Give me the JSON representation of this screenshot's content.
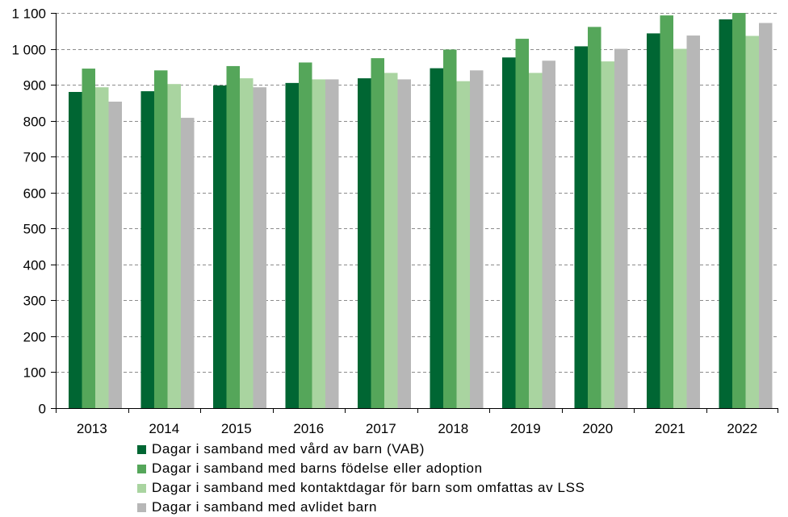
{
  "chart_data": {
    "type": "bar",
    "title": "",
    "xlabel": "",
    "ylabel": "",
    "ylim": [
      0,
      1100
    ],
    "y_ticks": [
      0,
      100,
      200,
      300,
      400,
      500,
      600,
      700,
      800,
      900,
      1000,
      1100
    ],
    "y_tick_labels": [
      "0",
      "100",
      "200",
      "300",
      "400",
      "500",
      "600",
      "700",
      "800",
      "900",
      "1 000",
      "1 100"
    ],
    "grid": "horizontal dashed",
    "legend_position": "bottom",
    "categories": [
      "2013",
      "2014",
      "2015",
      "2016",
      "2017",
      "2018",
      "2019",
      "2020",
      "2021",
      "2022"
    ],
    "series": [
      {
        "name": "Dagar i samband med vård av  barn (VAB)",
        "color": "#006633",
        "values": [
          880,
          882,
          898,
          905,
          918,
          946,
          976,
          1007,
          1043,
          1082
        ]
      },
      {
        "name": "Dagar i samband med barns födelse eller adoption",
        "color": "#55a65a",
        "values": [
          945,
          940,
          952,
          962,
          974,
          998,
          1028,
          1061,
          1093,
          1100
        ]
      },
      {
        "name": "Dagar i samband med kontaktdagar för barn som omfattas av LSS",
        "color": "#a9d4a0",
        "values": [
          893,
          902,
          918,
          915,
          933,
          910,
          933,
          965,
          1000,
          1036
        ]
      },
      {
        "name": "Dagar i samband med avlidet barn",
        "color": "#b7b7b7",
        "values": [
          853,
          808,
          893,
          915,
          915,
          940,
          967,
          1000,
          1037,
          1072
        ]
      }
    ]
  }
}
